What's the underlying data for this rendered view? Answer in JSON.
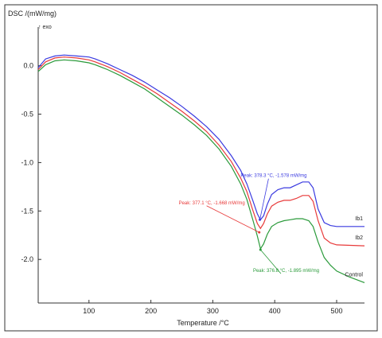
{
  "chart_data": {
    "type": "line",
    "ylabel": "DSC /(mW/mg)",
    "exo_label": "↑ exo",
    "xlabel": "Temperature /°C",
    "xlim": [
      18,
      545
    ],
    "ylim": [
      -2.45,
      0.35
    ],
    "xticks": [
      100,
      200,
      300,
      400,
      500
    ],
    "yticks": [
      0.0,
      -0.5,
      -1.0,
      -1.5,
      -2.0
    ],
    "ytick_labels": [
      "0.0",
      "-0.5",
      "-1.0",
      "-1.5",
      "-2.0"
    ],
    "series": [
      {
        "name": "Ib1",
        "color": "#3a3ae0",
        "points": [
          [
            18,
            -0.02
          ],
          [
            30,
            0.07
          ],
          [
            45,
            0.1
          ],
          [
            60,
            0.11
          ],
          [
            80,
            0.1
          ],
          [
            100,
            0.09
          ],
          [
            110,
            0.07
          ],
          [
            130,
            0.02
          ],
          [
            150,
            -0.04
          ],
          [
            170,
            -0.1
          ],
          [
            190,
            -0.17
          ],
          [
            210,
            -0.25
          ],
          [
            230,
            -0.33
          ],
          [
            250,
            -0.42
          ],
          [
            270,
            -0.52
          ],
          [
            290,
            -0.63
          ],
          [
            310,
            -0.76
          ],
          [
            330,
            -0.93
          ],
          [
            345,
            -1.08
          ],
          [
            355,
            -1.22
          ],
          [
            365,
            -1.4
          ],
          [
            372,
            -1.53
          ],
          [
            377,
            -1.59
          ],
          [
            382,
            -1.55
          ],
          [
            388,
            -1.43
          ],
          [
            395,
            -1.33
          ],
          [
            405,
            -1.28
          ],
          [
            415,
            -1.26
          ],
          [
            425,
            -1.26
          ],
          [
            435,
            -1.23
          ],
          [
            445,
            -1.2
          ],
          [
            455,
            -1.2
          ],
          [
            462,
            -1.26
          ],
          [
            470,
            -1.48
          ],
          [
            480,
            -1.62
          ],
          [
            490,
            -1.65
          ],
          [
            500,
            -1.66
          ],
          [
            545,
            -1.66
          ]
        ]
      },
      {
        "name": "Ib2",
        "color": "#e83a3a",
        "points": [
          [
            18,
            -0.04
          ],
          [
            30,
            0.04
          ],
          [
            45,
            0.08
          ],
          [
            60,
            0.09
          ],
          [
            80,
            0.08
          ],
          [
            100,
            0.06
          ],
          [
            110,
            0.04
          ],
          [
            130,
            -0.01
          ],
          [
            150,
            -0.07
          ],
          [
            170,
            -0.14
          ],
          [
            190,
            -0.21
          ],
          [
            210,
            -0.29
          ],
          [
            230,
            -0.38
          ],
          [
            250,
            -0.47
          ],
          [
            270,
            -0.57
          ],
          [
            290,
            -0.68
          ],
          [
            310,
            -0.82
          ],
          [
            330,
            -0.99
          ],
          [
            345,
            -1.16
          ],
          [
            355,
            -1.3
          ],
          [
            365,
            -1.5
          ],
          [
            372,
            -1.63
          ],
          [
            377,
            -1.68
          ],
          [
            382,
            -1.63
          ],
          [
            388,
            -1.53
          ],
          [
            395,
            -1.45
          ],
          [
            405,
            -1.41
          ],
          [
            415,
            -1.39
          ],
          [
            425,
            -1.39
          ],
          [
            435,
            -1.37
          ],
          [
            445,
            -1.34
          ],
          [
            455,
            -1.34
          ],
          [
            462,
            -1.4
          ],
          [
            470,
            -1.6
          ],
          [
            480,
            -1.78
          ],
          [
            490,
            -1.83
          ],
          [
            500,
            -1.85
          ],
          [
            545,
            -1.86
          ]
        ]
      },
      {
        "name": "Control",
        "color": "#2a9a3a",
        "points": [
          [
            18,
            -0.06
          ],
          [
            30,
            0.01
          ],
          [
            45,
            0.05
          ],
          [
            60,
            0.06
          ],
          [
            80,
            0.05
          ],
          [
            100,
            0.03
          ],
          [
            110,
            0.01
          ],
          [
            130,
            -0.04
          ],
          [
            150,
            -0.1
          ],
          [
            170,
            -0.17
          ],
          [
            190,
            -0.24
          ],
          [
            210,
            -0.33
          ],
          [
            230,
            -0.42
          ],
          [
            250,
            -0.51
          ],
          [
            270,
            -0.61
          ],
          [
            290,
            -0.72
          ],
          [
            310,
            -0.86
          ],
          [
            330,
            -1.04
          ],
          [
            345,
            -1.22
          ],
          [
            355,
            -1.38
          ],
          [
            365,
            -1.6
          ],
          [
            372,
            -1.76
          ],
          [
            377,
            -1.89
          ],
          [
            382,
            -1.84
          ],
          [
            388,
            -1.74
          ],
          [
            395,
            -1.66
          ],
          [
            405,
            -1.62
          ],
          [
            415,
            -1.6
          ],
          [
            425,
            -1.59
          ],
          [
            435,
            -1.58
          ],
          [
            445,
            -1.58
          ],
          [
            455,
            -1.6
          ],
          [
            462,
            -1.66
          ],
          [
            470,
            -1.82
          ],
          [
            480,
            -1.98
          ],
          [
            490,
            -2.06
          ],
          [
            500,
            -2.12
          ],
          [
            520,
            -2.18
          ],
          [
            545,
            -2.24
          ]
        ]
      }
    ],
    "annotations": [
      {
        "text": "Peak: 378.3 °C, -1.578 mW/mg",
        "color": "#3a3ae0",
        "tx": 345,
        "ty": -1.15,
        "px": 376,
        "py": -1.59
      },
      {
        "text": "Peak: 377.1 °C, -1.668 mW/mg",
        "color": "#e83a3a",
        "tx": 245,
        "ty": -1.43,
        "px": 375,
        "py": -1.72
      },
      {
        "text": "Peak: 376.8 °C, -1.895 mW/mg",
        "color": "#2a9a3a",
        "tx": 365,
        "ty": -2.13,
        "px": 377,
        "py": -1.9
      }
    ]
  }
}
